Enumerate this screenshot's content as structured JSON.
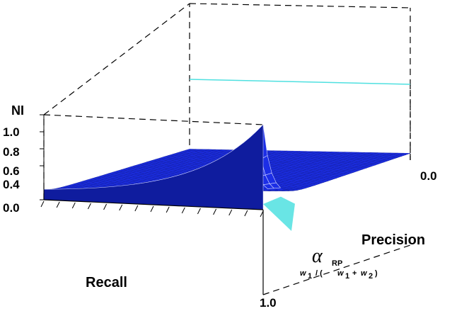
{
  "chart_data": {
    "type": "surface",
    "zlabel": "NI",
    "z_ticks": [
      "0.0",
      "0.4",
      "0.6",
      "0.8",
      "1.0"
    ],
    "zlim": [
      0,
      1
    ],
    "xlabel": "Recall",
    "ylabel": "Precision",
    "x_tick_labels": [
      "1.0"
    ],
    "y_tick_labels": [
      "0.0"
    ],
    "alpha_label": "α",
    "alpha_subscript": "RP",
    "weight_formula": {
      "w": "w",
      "sub1": "1",
      "sub2": "2",
      "slash_open": "/ (",
      "plus": "+",
      "close": ")"
    },
    "colors": {
      "surface": "#1c2ee6",
      "surface_dark": "#0f1c9e",
      "mesh": "#d8dcff",
      "edge_highlight": "#4fe0e0",
      "box_line": "#000000",
      "box_frame_cyan": "#4fe0e0"
    },
    "surface_model": {
      "description": "Peak near precision=0, recall=0; flat plateau elsewhere",
      "peak_value": 1.0,
      "baseline": 0.08
    }
  }
}
